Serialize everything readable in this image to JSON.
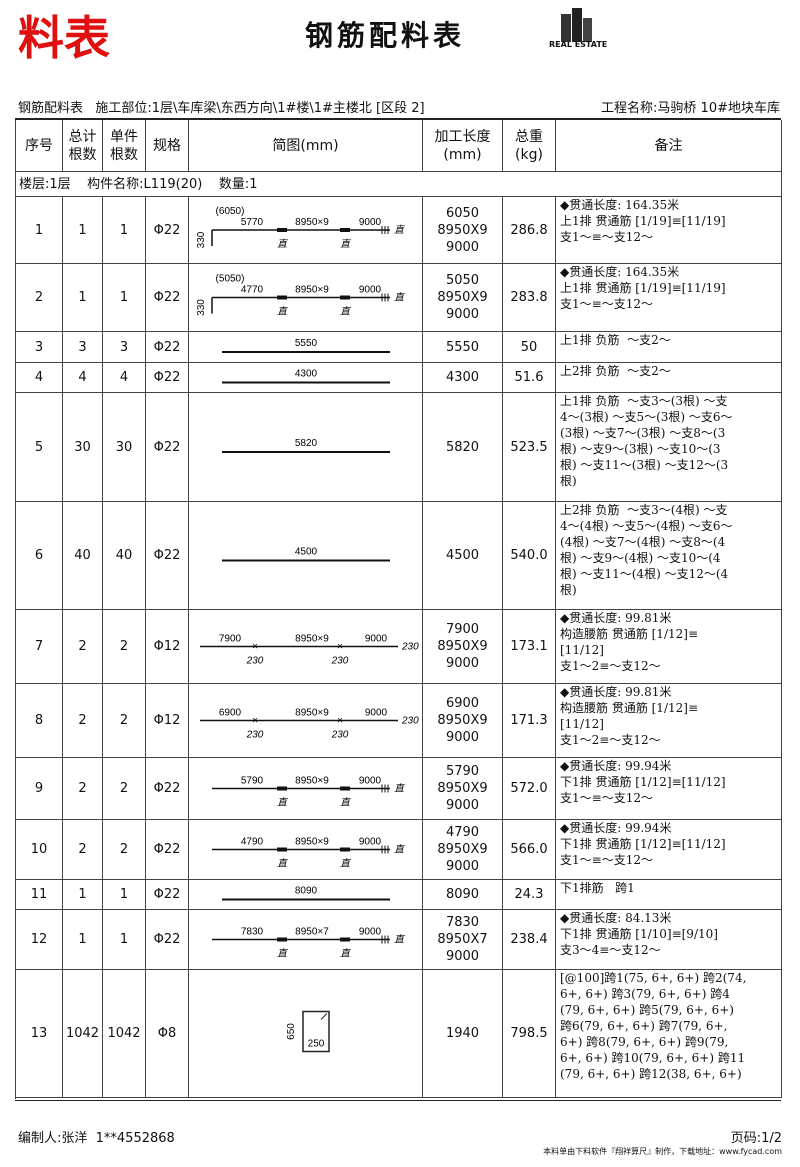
{
  "header": {
    "corner": "料表",
    "title": "钢筋配料表",
    "logo": "REAL ESTATE",
    "info_left": "钢筋配料表   施工部位:1层\\车库梁\\东西方向\\1#楼\\1#主楼北 [区段 2]",
    "info_right": "工程名称:马驹桥 10#地块车库"
  },
  "table": {
    "columns": [
      "序号",
      "总计\n根数",
      "单件\n根数",
      "规格",
      "简图(mm)",
      "加工长度\n(mm)",
      "总重\n(kg)",
      "备注"
    ],
    "group": "楼层:1层    构件名称:L119(20)    数量:1",
    "rows": [
      {
        "no": 1,
        "total": 1,
        "each": 1,
        "spec": "Φ22",
        "diagram": {
          "top": "(6050)",
          "hook": "330",
          "segments": [
            5770,
            "8950×9",
            9000
          ],
          "below": [
            "直",
            "直"
          ],
          "end": "直"
        },
        "lengths": [
          6050,
          "8950X9",
          9000
        ],
        "weight": 286.8,
        "note": [
          "◆贯通长度: 164.35米",
          "上1排 贯通筋 [1/19]≡[11/19]",
          "支1～≡～支12～"
        ]
      },
      {
        "no": 2,
        "total": 1,
        "each": 1,
        "spec": "Φ22",
        "diagram": {
          "top": "(5050)",
          "hook": "330",
          "segments": [
            4770,
            "8950×9",
            9000
          ],
          "below": [
            "直",
            "直"
          ],
          "end": "直"
        },
        "lengths": [
          5050,
          "8950X9",
          9000
        ],
        "weight": 283.8,
        "note": [
          "◆贯通长度: 164.35米",
          "上1排 贯通筋 [1/19]≡[11/19]",
          "支1～≡～支12～"
        ]
      },
      {
        "no": 3,
        "total": 3,
        "each": 3,
        "spec": "Φ22",
        "diagram": {
          "segments": [
            5550
          ]
        },
        "lengths": [
          5550
        ],
        "weight": 50.0,
        "note": [
          "上1排 负筋  ～支2～"
        ]
      },
      {
        "no": 4,
        "total": 4,
        "each": 4,
        "spec": "Φ22",
        "diagram": {
          "segments": [
            4300
          ]
        },
        "lengths": [
          4300
        ],
        "weight": 51.6,
        "note": [
          "上2排 负筋  ～支2～"
        ]
      },
      {
        "no": 5,
        "total": 30,
        "each": 30,
        "spec": "Φ22",
        "diagram": {
          "segments": [
            5820
          ]
        },
        "lengths": [
          5820
        ],
        "weight": 523.5,
        "note": [
          "上1排 负筋  ～支3～(3根) ～支",
          "4～(3根) ～支5～(3根) ～支6～",
          "(3根) ～支7～(3根) ～支8～(3",
          "根) ～支9～(3根) ～支10～(3",
          "根) ～支11～(3根) ～支12～(3",
          "根)"
        ]
      },
      {
        "no": 6,
        "total": 40,
        "each": 40,
        "spec": "Φ22",
        "diagram": {
          "segments": [
            4500
          ]
        },
        "lengths": [
          4500
        ],
        "weight": "540.0",
        "note": [
          "上2排 负筋  ～支3～(4根) ～支",
          "4～(4根) ～支5～(4根) ～支6～",
          "(4根) ～支7～(4根) ～支8～(4",
          "根) ～支9～(4根) ～支10～(4",
          "根) ～支11～(4根) ～支12～(4",
          "根)"
        ]
      },
      {
        "no": 7,
        "total": 2,
        "each": 2,
        "spec": "Φ12",
        "diagram": {
          "segments": [
            7900,
            "8950×9",
            9000
          ],
          "below": [
            "230",
            "230"
          ],
          "end": "230"
        },
        "lengths": [
          7900,
          "8950X9",
          9000
        ],
        "weight": 173.1,
        "note": [
          "◆贯通长度: 99.81米",
          "构造腰筋 贯通筋 [1/12]≡",
          "[11/12]",
          "支1～2≡～支12～"
        ]
      },
      {
        "no": 8,
        "total": 2,
        "each": 2,
        "spec": "Φ12",
        "diagram": {
          "segments": [
            6900,
            "8950×9",
            9000
          ],
          "below": [
            "230",
            "230"
          ],
          "end": "230"
        },
        "lengths": [
          6900,
          "8950X9",
          9000
        ],
        "weight": 171.3,
        "note": [
          "◆贯通长度: 99.81米",
          "构造腰筋 贯通筋 [1/12]≡",
          "[11/12]",
          "支1～2≡～支12～"
        ]
      },
      {
        "no": 9,
        "total": 2,
        "each": 2,
        "spec": "Φ22",
        "diagram": {
          "segments": [
            5790,
            "8950×9",
            9000
          ],
          "below": [
            "直",
            "直"
          ],
          "end": "直"
        },
        "lengths": [
          5790,
          "8950X9",
          9000
        ],
        "weight": "572.0",
        "note": [
          "◆贯通长度: 99.94米",
          "下1排 贯通筋 [1/12]≡[11/12]",
          "支1～≡～支12～"
        ]
      },
      {
        "no": 10,
        "total": 2,
        "each": 2,
        "spec": "Φ22",
        "diagram": {
          "segments": [
            4790,
            "8950×9",
            9000
          ],
          "below": [
            "直",
            "直"
          ],
          "end": "直"
        },
        "lengths": [
          4790,
          "8950X9",
          9000
        ],
        "weight": "566.0",
        "note": [
          "◆贯通长度: 99.94米",
          "下1排 贯通筋 [1/12]≡[11/12]",
          "支1～≡～支12～"
        ]
      },
      {
        "no": 11,
        "total": 1,
        "each": 1,
        "spec": "Φ22",
        "diagram": {
          "segments": [
            8090
          ]
        },
        "lengths": [
          8090
        ],
        "weight": 24.3,
        "note": [
          "下1排筋   跨1"
        ]
      },
      {
        "no": 12,
        "total": 1,
        "each": 1,
        "spec": "Φ22",
        "diagram": {
          "segments": [
            7830,
            "8950×7",
            9000
          ],
          "below": [
            "直",
            "直"
          ],
          "end": "直"
        },
        "lengths": [
          7830,
          "8950X7",
          9000
        ],
        "weight": 238.4,
        "note": [
          "◆贯通长度: 84.13米",
          "下1排 贯通筋 [1/10]≡[9/10]",
          "支3～4≡～支12～"
        ]
      },
      {
        "no": 13,
        "total": 1042,
        "each": 1042,
        "spec": "Φ8",
        "diagram": {
          "height": "650",
          "width": "250"
        },
        "lengths": [
          1940
        ],
        "weight": 798.5,
        "note": [
          "[@100]跨1(75, 6+, 6+) 跨2(74,",
          "6+, 6+) 跨3(79, 6+, 6+) 跨4",
          "(79, 6+, 6+) 跨5(79, 6+, 6+)",
          "跨6(79, 6+, 6+) 跨7(79, 6+,",
          "6+) 跨8(79, 6+, 6+) 跨9(79,",
          "6+, 6+) 跨10(79, 6+, 6+) 跨11",
          "(79, 6+, 6+) 跨12(38, 6+, 6+)"
        ]
      }
    ]
  },
  "footer": {
    "author": "编制人:张洋  1**4552868",
    "page": "页码:1/2",
    "credit": "本料单由下料软件『翔祥算尺』制作，下载地址：www.fycad.com"
  }
}
